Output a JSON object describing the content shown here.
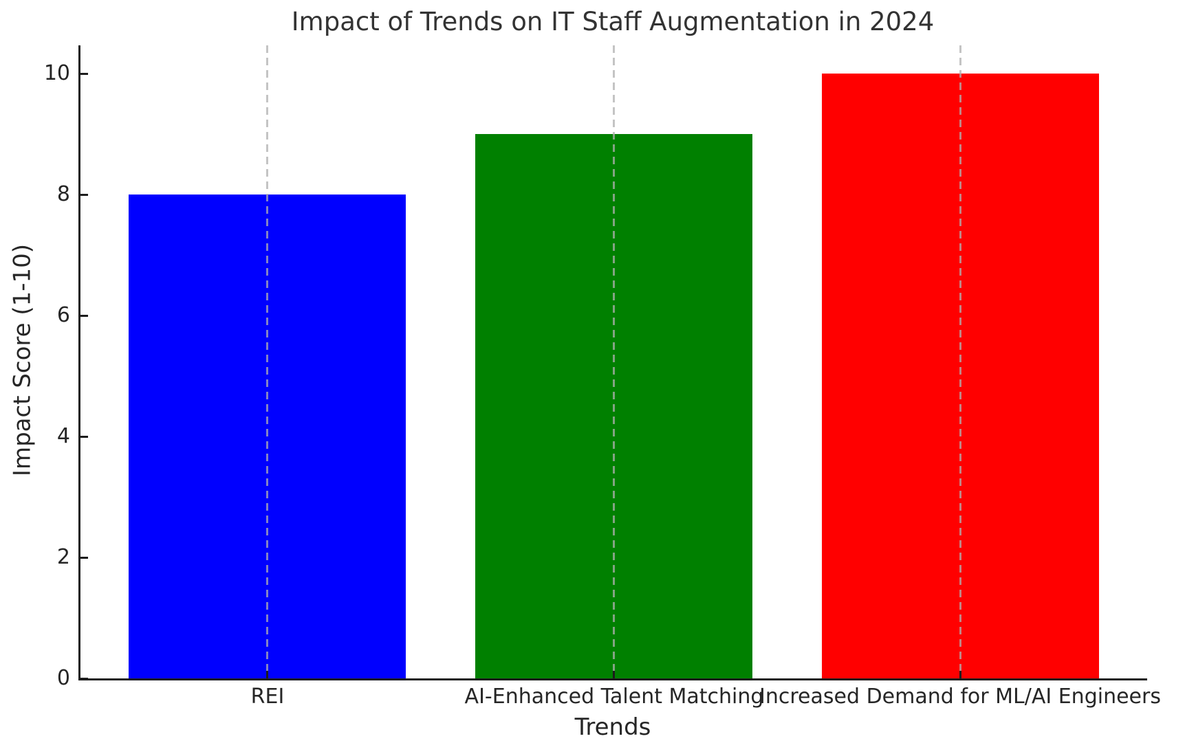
{
  "chart_data": {
    "type": "bar",
    "title": "Impact of Trends on IT Staff Augmentation in 2024",
    "xlabel": "Trends",
    "ylabel": "Impact Score (1-10)",
    "categories": [
      "REI",
      "AI-Enhanced Talent Matching",
      "Increased Demand for ML/AI Engineers"
    ],
    "values": [
      8,
      9,
      10
    ],
    "bar_colors": [
      "#0000ff",
      "#008000",
      "#ff0000"
    ],
    "yticks": [
      0,
      2,
      4,
      6,
      8,
      10
    ],
    "ylim": [
      0,
      10.5
    ],
    "legend": "none",
    "grid": "vertical-dashed-over-bars",
    "grid_color": "#b0b0b0",
    "spine_color": "#1c1c1c",
    "background_color": "#ffffff"
  }
}
